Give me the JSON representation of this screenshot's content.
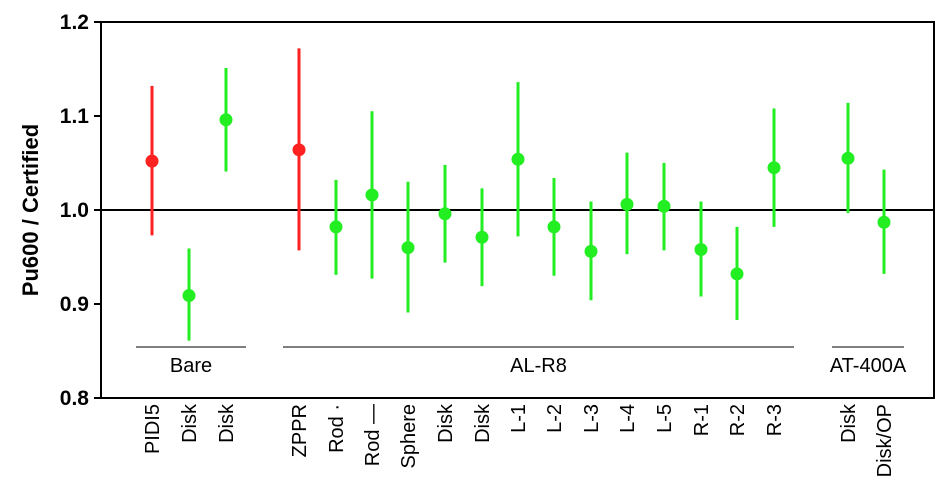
{
  "chart_data": {
    "type": "scatter",
    "title": "",
    "xlabel": "",
    "ylabel": "Pu600 / Certified",
    "ylim": [
      0.8,
      1.2
    ],
    "yticks": [
      "0.8",
      "0.9",
      "1.0",
      "1.1",
      "1.2"
    ],
    "reference_line": 1.0,
    "grid": false,
    "colors": {
      "red": "#ff2020",
      "green": "#22ee22"
    },
    "points": [
      {
        "label": "PIDI5",
        "value": 1.052,
        "low": 0.973,
        "high": 1.132,
        "color": "red"
      },
      {
        "label": "Disk",
        "value": 0.909,
        "low": 0.861,
        "high": 0.959,
        "color": "green"
      },
      {
        "label": "Disk",
        "value": 1.096,
        "low": 1.041,
        "high": 1.151,
        "color": "green"
      },
      {
        "label": "ZPPR",
        "value": 1.064,
        "low": 0.957,
        "high": 1.172,
        "color": "red"
      },
      {
        "label": "Rod ·",
        "value": 0.982,
        "low": 0.931,
        "high": 1.032,
        "color": "green"
      },
      {
        "label": "Rod —",
        "value": 1.016,
        "low": 0.927,
        "high": 1.105,
        "color": "green"
      },
      {
        "label": "Sphere",
        "value": 0.96,
        "low": 0.891,
        "high": 1.03,
        "color": "green"
      },
      {
        "label": "Disk",
        "value": 0.996,
        "low": 0.944,
        "high": 1.048,
        "color": "green"
      },
      {
        "label": "Disk",
        "value": 0.971,
        "low": 0.919,
        "high": 1.023,
        "color": "green"
      },
      {
        "label": "L-1",
        "value": 1.054,
        "low": 0.972,
        "high": 1.136,
        "color": "green"
      },
      {
        "label": "L-2",
        "value": 0.982,
        "low": 0.93,
        "high": 1.034,
        "color": "green"
      },
      {
        "label": "L-3",
        "value": 0.956,
        "low": 0.904,
        "high": 1.009,
        "color": "green"
      },
      {
        "label": "L-4",
        "value": 1.006,
        "low": 0.953,
        "high": 1.061,
        "color": "green"
      },
      {
        "label": "L-5",
        "value": 1.004,
        "low": 0.957,
        "high": 1.05,
        "color": "green"
      },
      {
        "label": "R-1",
        "value": 0.958,
        "low": 0.908,
        "high": 1.009,
        "color": "green"
      },
      {
        "label": "R-2",
        "value": 0.932,
        "low": 0.883,
        "high": 0.982,
        "color": "green"
      },
      {
        "label": "R-3",
        "value": 1.045,
        "low": 0.982,
        "high": 1.108,
        "color": "green"
      },
      {
        "label": "Disk",
        "value": 1.055,
        "low": 0.997,
        "high": 1.114,
        "color": "green"
      },
      {
        "label": "Disk/OP",
        "value": 0.987,
        "low": 0.932,
        "high": 1.043,
        "color": "green"
      }
    ],
    "groups": [
      {
        "name": "Bare",
        "first": 0,
        "last": 2
      },
      {
        "name": "AL-R8",
        "first": 3,
        "last": 16
      },
      {
        "name": "AT-400A",
        "first": 17,
        "last": 18
      }
    ]
  }
}
